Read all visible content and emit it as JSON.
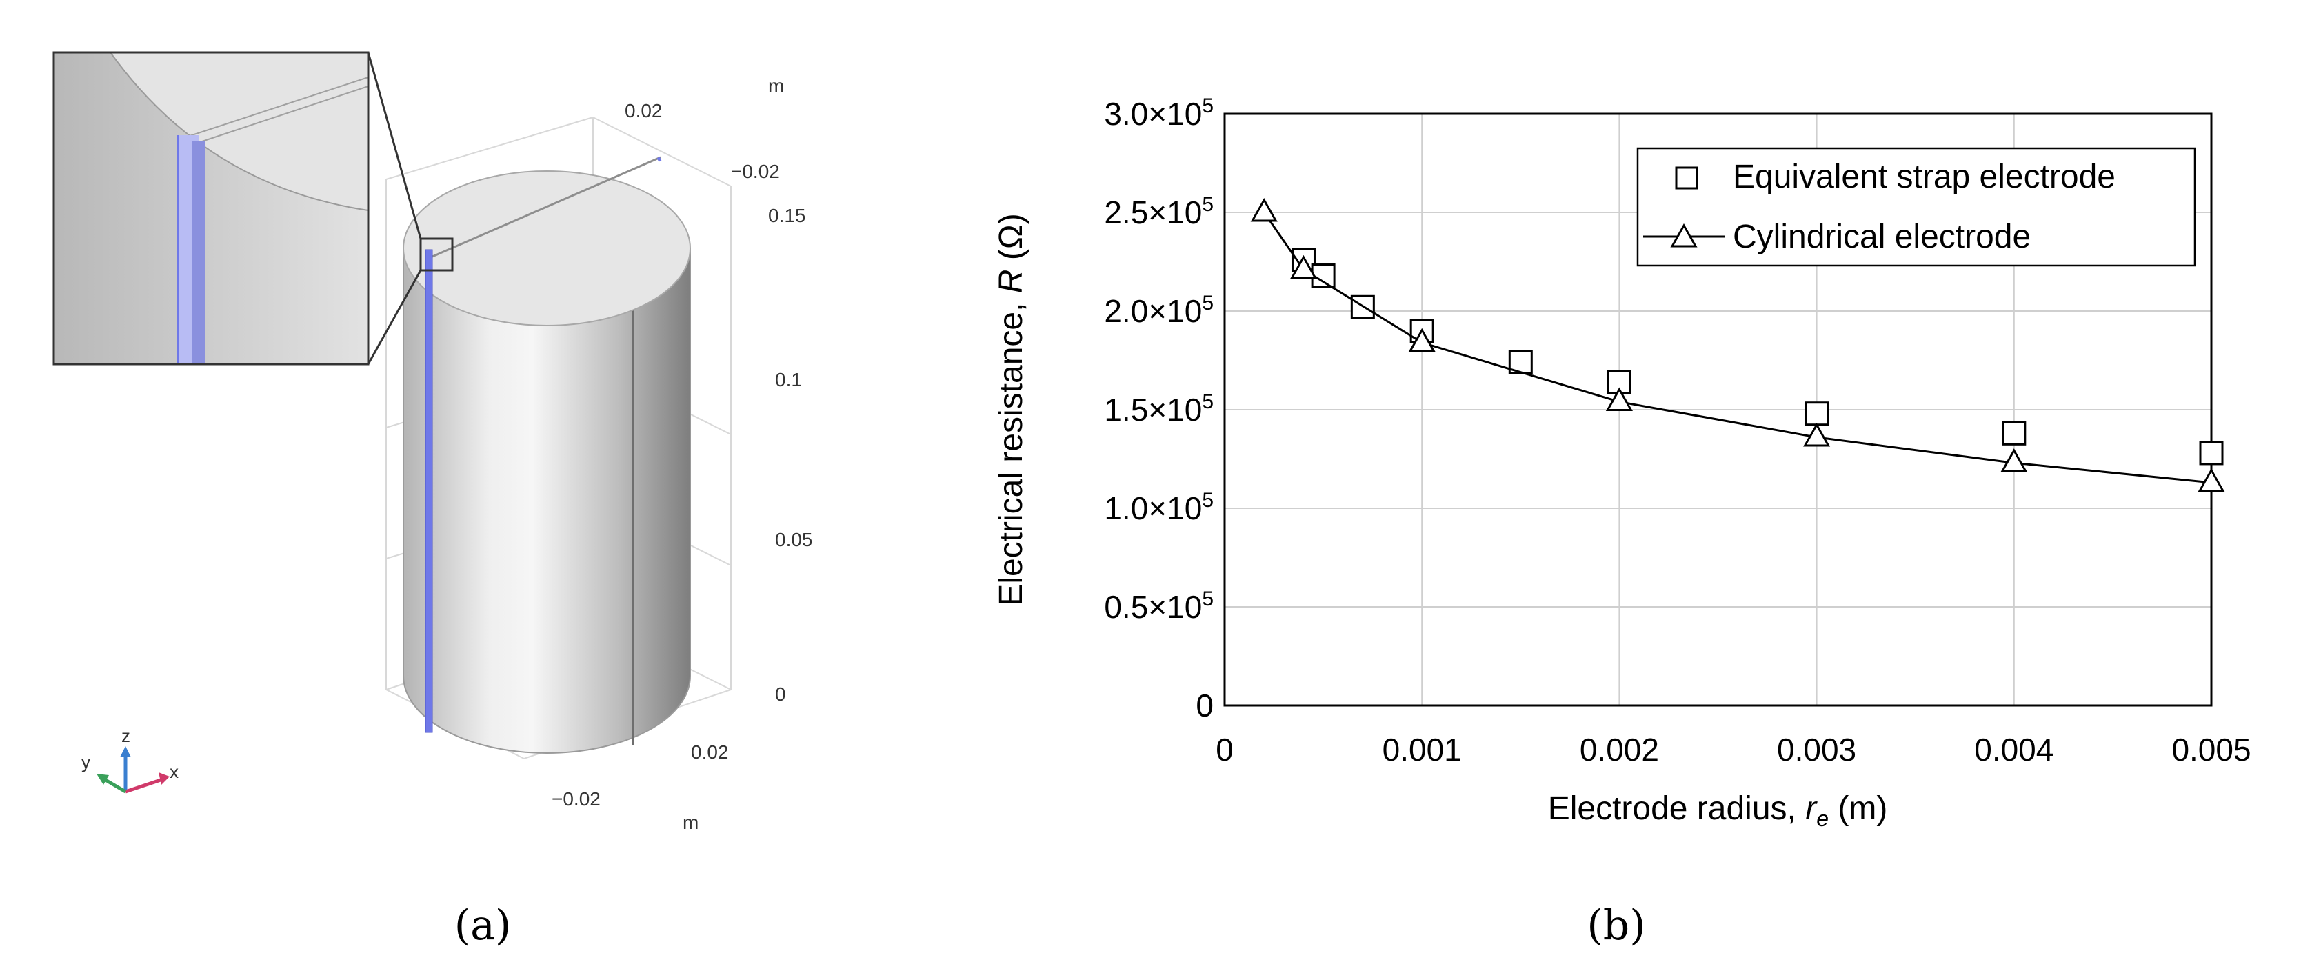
{
  "panel_a": {
    "label": "(a)",
    "z_axis": {
      "unit": "m",
      "ticks": [
        "0.15",
        "0.1",
        "0.05",
        "0"
      ]
    },
    "top_axis": {
      "unit": "m",
      "ticks": [
        "0.02",
        "−0.02"
      ]
    },
    "bottom_axis": {
      "unit": "m",
      "ticks": [
        "0.02",
        "−0.02"
      ]
    },
    "triad": {
      "x": "x",
      "y": "y",
      "z": "z"
    },
    "colors": {
      "electrode": "#6f78e8",
      "body": "#c8c8c8"
    }
  },
  "panel_b": {
    "label": "(b)"
  },
  "chart_data": {
    "type": "scatter",
    "title": "",
    "xlabel": "Electrode radius,",
    "xlabel_symbol": "r",
    "xlabel_subscript": "e",
    "xlabel_unit": "(m)",
    "ylabel": "Electrical resistance,",
    "ylabel_symbol": "R",
    "ylabel_unit": "(Ω)",
    "xlim": [
      0,
      0.005
    ],
    "ylim": [
      0,
      300000
    ],
    "x_ticks": [
      0,
      0.001,
      0.002,
      0.003,
      0.004,
      0.005
    ],
    "x_tick_labels": [
      "0",
      "0.001",
      "0.002",
      "0.003",
      "0.004",
      "0.005"
    ],
    "y_ticks": [
      0,
      50000,
      100000,
      150000,
      200000,
      250000,
      300000
    ],
    "y_tick_labels": [
      {
        "mant": "0",
        "exp": ""
      },
      {
        "mant": "0.5×10",
        "exp": "5"
      },
      {
        "mant": "1.0×10",
        "exp": "5"
      },
      {
        "mant": "1.5×10",
        "exp": "5"
      },
      {
        "mant": "2.0×10",
        "exp": "5"
      },
      {
        "mant": "2.5×10",
        "exp": "5"
      },
      {
        "mant": "3.0×10",
        "exp": "5"
      }
    ],
    "grid": true,
    "legend_position": "top-right",
    "series": [
      {
        "name": "Equivalent strap electrode",
        "marker": "square",
        "line": false,
        "x": [
          0.0004,
          0.0005,
          0.0007,
          0.001,
          0.0015,
          0.002,
          0.003,
          0.004,
          0.005
        ],
        "y": [
          226000,
          218000,
          202000,
          190000,
          174000,
          164000,
          148000,
          138000,
          128000
        ]
      },
      {
        "name": "Cylindrical electrode",
        "marker": "triangle",
        "line": true,
        "x": [
          0.0002,
          0.0004,
          0.001,
          0.002,
          0.003,
          0.004,
          0.005
        ],
        "y": [
          250000,
          221000,
          184000,
          154000,
          136000,
          123000,
          113000
        ]
      }
    ]
  }
}
